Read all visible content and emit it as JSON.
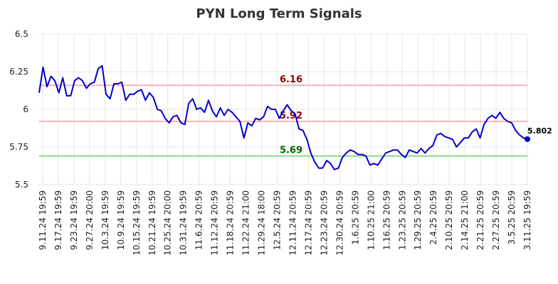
{
  "chart_data": {
    "type": "line",
    "title": "PYN Long Term Signals",
    "xlabel": "",
    "ylabel": "",
    "ylim": [
      5.5,
      6.5
    ],
    "yticks": [
      5.5,
      5.75,
      6,
      6.25,
      6.5
    ],
    "ytick_labels": [
      "5.5",
      "5.75",
      "6",
      "6.25",
      "6.5"
    ],
    "grid": true,
    "line_color": "#0000cc",
    "x_labels": [
      "9.11.24 19:59",
      "9.17.24 19:59",
      "9.23.24 19:59",
      "9.27.24 20:00",
      "10.3.24 19:59",
      "10.9.24 19:59",
      "10.15.24 19:59",
      "10.21.24 19:59",
      "10.25.24 20:00",
      "10.31.24 19:59",
      "11.6.24 20:59",
      "11.12.24 20:59",
      "11.18.24 20:59",
      "11.22.24 21:00",
      "11.29.24 18:00",
      "12.5.24 20:59",
      "12.11.24 20:59",
      "12.17.24 20:59",
      "12.23.24 20:59",
      "12.30.24 20:59",
      "1.6.25 20:59",
      "1.10.25 21:00",
      "1.16.25 20:59",
      "1.23.25 20:59",
      "1.29.25 20:59",
      "2.4.25 20:59",
      "2.10.25 20:59",
      "2.14.25 21:00",
      "2.21.25 20:59",
      "2.27.25 20:59",
      "3.5.25 20:59",
      "3.11.25 19:59"
    ],
    "series": [
      {
        "values": [
          6.11,
          6.28,
          6.15,
          6.22,
          6.19,
          6.11,
          6.21,
          6.09,
          6.09,
          6.19,
          6.21,
          6.19,
          6.14,
          6.17,
          6.18,
          6.27,
          6.29,
          6.1,
          6.07,
          6.17,
          6.17,
          6.18,
          6.06,
          6.1,
          6.1,
          6.12,
          6.13,
          6.06,
          6.11,
          6.08,
          6.0,
          5.99,
          5.94,
          5.91,
          5.95,
          5.96,
          5.91,
          5.9,
          6.04,
          6.07,
          6.0,
          6.01,
          5.98,
          6.06,
          5.99,
          5.95,
          6.01,
          5.96,
          6.0,
          5.98,
          5.95,
          5.92,
          5.81,
          5.91,
          5.89,
          5.94,
          5.93,
          5.95,
          6.02,
          6.0,
          6.0,
          5.94,
          5.99,
          6.03,
          5.99,
          5.97,
          5.87,
          5.86,
          5.8,
          5.71,
          5.65,
          5.61,
          5.61,
          5.66,
          5.64,
          5.6,
          5.61,
          5.68,
          5.71,
          5.73,
          5.72,
          5.7,
          5.7,
          5.69,
          5.63,
          5.64,
          5.63,
          5.67,
          5.71,
          5.72,
          5.73,
          5.73,
          5.7,
          5.68,
          5.73,
          5.72,
          5.71,
          5.74,
          5.71,
          5.74,
          5.76,
          5.83,
          5.84,
          5.82,
          5.81,
          5.8,
          5.75,
          5.78,
          5.81,
          5.81,
          5.85,
          5.87,
          5.81,
          5.9,
          5.94,
          5.96,
          5.94,
          5.98,
          5.94,
          5.92,
          5.91,
          5.86,
          5.83,
          5.81,
          5.802
        ]
      }
    ],
    "reference_lines": [
      {
        "value": 6.16,
        "label": "6.16",
        "line_color": "#ffb3b3",
        "label_color": "#8b0000"
      },
      {
        "value": 5.92,
        "label": "5.92",
        "line_color": "#ffb3b3",
        "label_color": "#8b0000"
      },
      {
        "value": 5.69,
        "label": "5.69",
        "line_color": "#88dd88",
        "label_color": "#006400"
      }
    ],
    "last_value_label": "5.802"
  }
}
